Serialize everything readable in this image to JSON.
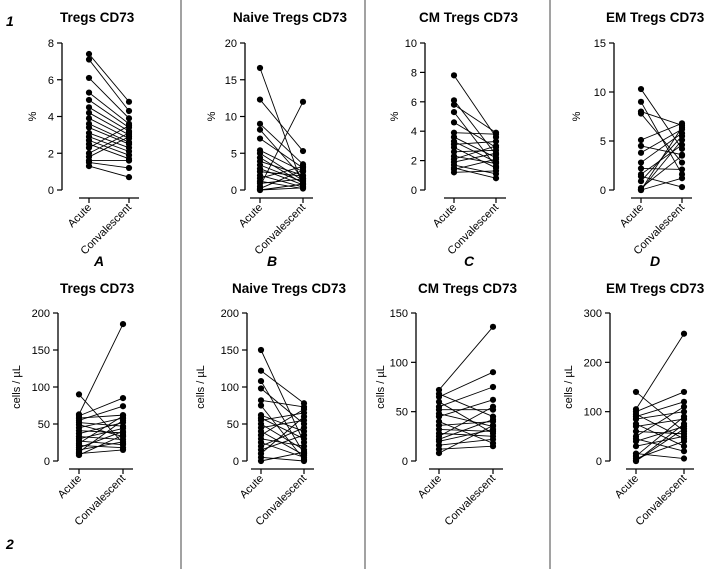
{
  "row_labels": [
    "1",
    "2"
  ],
  "chart_data": [
    {
      "type": "scatter",
      "title": "Tregs CD73",
      "ylabel": "%",
      "ylim": [
        0,
        8
      ],
      "yticks": [
        0,
        2,
        4,
        6,
        8
      ],
      "categories": [
        "Acute",
        "Convalescent"
      ],
      "panel_letter": "A",
      "pairs": [
        [
          7.4,
          4.8
        ],
        [
          7.1,
          4.3
        ],
        [
          6.1,
          3.9
        ],
        [
          5.3,
          3.6
        ],
        [
          4.9,
          3.4
        ],
        [
          4.5,
          3.2
        ],
        [
          4.2,
          3.0
        ],
        [
          3.9,
          2.8
        ],
        [
          3.6,
          2.6
        ],
        [
          3.4,
          2.5
        ],
        [
          3.1,
          2.3
        ],
        [
          2.9,
          2.1
        ],
        [
          2.7,
          1.9
        ],
        [
          2.5,
          1.7
        ],
        [
          2.3,
          3.5
        ],
        [
          2.0,
          3.1
        ],
        [
          1.8,
          2.9
        ],
        [
          1.6,
          1.6
        ],
        [
          1.5,
          1.2
        ],
        [
          1.3,
          0.7
        ]
      ]
    },
    {
      "type": "scatter",
      "title": "Naive Tregs CD73",
      "ylabel": "%",
      "ylim": [
        0,
        20
      ],
      "yticks": [
        0,
        5,
        10,
        15,
        20
      ],
      "categories": [
        "Acute",
        "Convalescent"
      ],
      "panel_letter": "B",
      "pairs": [
        [
          16.6,
          0.5
        ],
        [
          12.3,
          5.3
        ],
        [
          9.0,
          3.5
        ],
        [
          8.2,
          1.6
        ],
        [
          7.0,
          3.0
        ],
        [
          5.4,
          2.5
        ],
        [
          5.0,
          1.3
        ],
        [
          4.4,
          0.9
        ],
        [
          3.9,
          2.0
        ],
        [
          3.4,
          1.1
        ],
        [
          2.9,
          0.7
        ],
        [
          2.5,
          1.9
        ],
        [
          2.0,
          0.4
        ],
        [
          1.6,
          3.2
        ],
        [
          1.2,
          0.2
        ],
        [
          0.9,
          1.5
        ],
        [
          0.5,
          12.0
        ],
        [
          0.2,
          2.7
        ],
        [
          0.0,
          0.8
        ],
        [
          0.0,
          0.3
        ]
      ]
    },
    {
      "type": "scatter",
      "title": "CM Tregs CD73",
      "ylabel": "%",
      "ylim": [
        0,
        10
      ],
      "yticks": [
        0,
        2,
        4,
        6,
        8,
        10
      ],
      "categories": [
        "Acute",
        "Convalescent"
      ],
      "panel_letter": "C",
      "pairs": [
        [
          7.8,
          3.6
        ],
        [
          6.1,
          2.4
        ],
        [
          5.8,
          3.9
        ],
        [
          5.3,
          1.6
        ],
        [
          4.6,
          2.9
        ],
        [
          3.9,
          3.8
        ],
        [
          3.6,
          2.2
        ],
        [
          3.3,
          1.9
        ],
        [
          3.1,
          3.3
        ],
        [
          2.9,
          1.5
        ],
        [
          2.6,
          2.7
        ],
        [
          2.3,
          1.8
        ],
        [
          2.1,
          3.0
        ],
        [
          1.9,
          2.5
        ],
        [
          1.7,
          1.1
        ],
        [
          1.5,
          0.8
        ],
        [
          1.4,
          2.1
        ],
        [
          1.2,
          1.3
        ]
      ]
    },
    {
      "type": "scatter",
      "title": "EM Tregs CD73",
      "ylabel": "%",
      "ylim": [
        0,
        15
      ],
      "yticks": [
        0,
        5,
        10,
        15
      ],
      "categories": [
        "Acute",
        "Convalescent"
      ],
      "panel_letter": "D",
      "pairs": [
        [
          10.3,
          4.2
        ],
        [
          9.0,
          1.6
        ],
        [
          8.0,
          6.6
        ],
        [
          7.8,
          2.8
        ],
        [
          5.1,
          6.8
        ],
        [
          4.5,
          3.6
        ],
        [
          3.8,
          6.2
        ],
        [
          2.8,
          5.8
        ],
        [
          2.2,
          2.1
        ],
        [
          1.6,
          4.6
        ],
        [
          1.4,
          0.3
        ],
        [
          0.9,
          5.5
        ],
        [
          0.2,
          3.5
        ],
        [
          0.0,
          6.4
        ],
        [
          0.0,
          1.2
        ],
        [
          0.0,
          5.1
        ]
      ]
    },
    {
      "type": "scatter",
      "title": "Tregs CD73",
      "ylabel": "cells  /  µL",
      "ylim": [
        0,
        200
      ],
      "yticks": [
        0,
        50,
        100,
        150,
        200
      ],
      "categories": [
        "Acute",
        "Convalescent"
      ],
      "pairs": [
        [
          90,
          24
        ],
        [
          63,
          185
        ],
        [
          61,
          85
        ],
        [
          58,
          62
        ],
        [
          55,
          74
        ],
        [
          52,
          47
        ],
        [
          49,
          33
        ],
        [
          45,
          58
        ],
        [
          41,
          38
        ],
        [
          37,
          52
        ],
        [
          33,
          29
        ],
        [
          30,
          44
        ],
        [
          27,
          22
        ],
        [
          24,
          61
        ],
        [
          21,
          18
        ],
        [
          18,
          40
        ],
        [
          15,
          26
        ],
        [
          12,
          55
        ],
        [
          10,
          15
        ],
        [
          8,
          35
        ]
      ]
    },
    {
      "type": "scatter",
      "title": "Naive Tregs CD73",
      "ylabel": "cells  /  µL",
      "ylim": [
        0,
        200
      ],
      "yticks": [
        0,
        50,
        100,
        150,
        200
      ],
      "categories": [
        "Acute",
        "Convalescent"
      ],
      "pairs": [
        [
          150,
          25
        ],
        [
          122,
          78
        ],
        [
          108,
          10
        ],
        [
          98,
          50
        ],
        [
          82,
          73
        ],
        [
          75,
          2
        ],
        [
          62,
          40
        ],
        [
          58,
          30
        ],
        [
          55,
          65
        ],
        [
          50,
          15
        ],
        [
          45,
          55
        ],
        [
          40,
          8
        ],
        [
          35,
          70
        ],
        [
          30,
          20
        ],
        [
          25,
          5
        ],
        [
          20,
          45
        ],
        [
          15,
          35
        ],
        [
          10,
          60
        ],
        [
          5,
          0
        ],
        [
          0,
          12
        ]
      ]
    },
    {
      "type": "scatter",
      "title": "CM Tregs CD73",
      "ylabel": "cells  /  µL",
      "ylim": [
        0,
        150
      ],
      "yticks": [
        0,
        50,
        100,
        150
      ],
      "categories": [
        "Acute",
        "Convalescent"
      ],
      "pairs": [
        [
          72,
          136
        ],
        [
          68,
          45
        ],
        [
          65,
          90
        ],
        [
          60,
          28
        ],
        [
          55,
          75
        ],
        [
          52,
          52
        ],
        [
          48,
          35
        ],
        [
          45,
          62
        ],
        [
          40,
          18
        ],
        [
          36,
          40
        ],
        [
          32,
          30
        ],
        [
          28,
          25
        ],
        [
          25,
          55
        ],
        [
          22,
          42
        ],
        [
          20,
          32
        ],
        [
          16,
          22
        ],
        [
          12,
          15
        ],
        [
          8,
          36
        ]
      ]
    },
    {
      "type": "scatter",
      "title": "EM Tregs CD73",
      "ylabel": "cells  /  µL",
      "ylim": [
        0,
        300
      ],
      "yticks": [
        0,
        100,
        200,
        300
      ],
      "categories": [
        "Acute",
        "Convalescent"
      ],
      "pairs": [
        [
          140,
          60
        ],
        [
          105,
          258
        ],
        [
          100,
          140
        ],
        [
          95,
          45
        ],
        [
          90,
          120
        ],
        [
          85,
          100
        ],
        [
          75,
          30
        ],
        [
          70,
          85
        ],
        [
          60,
          55
        ],
        [
          50,
          110
        ],
        [
          45,
          20
        ],
        [
          40,
          70
        ],
        [
          30,
          50
        ],
        [
          15,
          5
        ],
        [
          10,
          90
        ],
        [
          5,
          40
        ],
        [
          0,
          65
        ],
        [
          0,
          75
        ]
      ]
    }
  ]
}
